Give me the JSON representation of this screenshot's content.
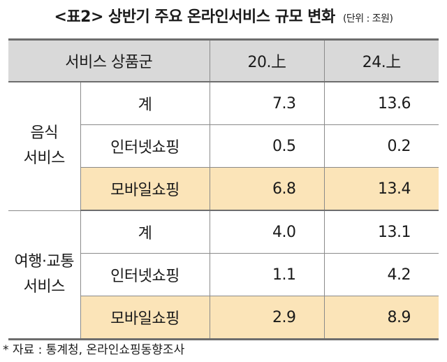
{
  "title": {
    "main": "<표2> 상반기 주요 온라인서비스 규모 변화",
    "unit": "(단위 : 조원)"
  },
  "table": {
    "headers": {
      "category": "서비스 상품군",
      "col1": "20.上",
      "col2": "24.上"
    },
    "groups": [
      {
        "name_line1": "음식",
        "name_line2": "서비스",
        "rows": [
          {
            "item": "계",
            "v1": "7.3",
            "v2": "13.6"
          },
          {
            "item": "인터넷쇼핑",
            "v1": "0.5",
            "v2": "0.2"
          },
          {
            "item": "모바일쇼핑",
            "v1": "6.8",
            "v2": "13.4"
          }
        ]
      },
      {
        "name_line1": "여행·교통",
        "name_line2": "서비스",
        "rows": [
          {
            "item": "계",
            "v1": "4.0",
            "v2": "13.1"
          },
          {
            "item": "인터넷쇼핑",
            "v1": "1.1",
            "v2": "4.2"
          },
          {
            "item": "모바일쇼핑",
            "v1": "2.9",
            "v2": "8.9"
          }
        ]
      }
    ]
  },
  "footnote": "* 자료 : 통계청, 온라인쇼핑동향조사"
}
